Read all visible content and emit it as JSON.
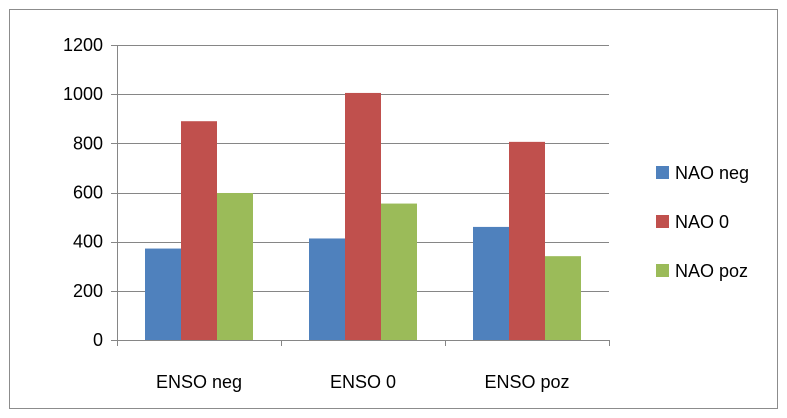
{
  "chart_data": {
    "type": "bar",
    "categories": [
      "ENSO neg",
      "ENSO 0",
      "ENSO poz"
    ],
    "series": [
      {
        "name": "NAO neg",
        "values": [
          372,
          413,
          460
        ],
        "color": "#4f81bd"
      },
      {
        "name": "NAO 0",
        "values": [
          890,
          1005,
          806
        ],
        "color": "#c0504d"
      },
      {
        "name": "NAO poz",
        "values": [
          598,
          555,
          341
        ],
        "color": "#9bbb59"
      }
    ],
    "title": "",
    "xlabel": "",
    "ylabel": "",
    "ylim": [
      0,
      1200
    ],
    "yticks": [
      0,
      200,
      400,
      600,
      800,
      1000,
      1200
    ],
    "grid": true,
    "legend": "right"
  }
}
